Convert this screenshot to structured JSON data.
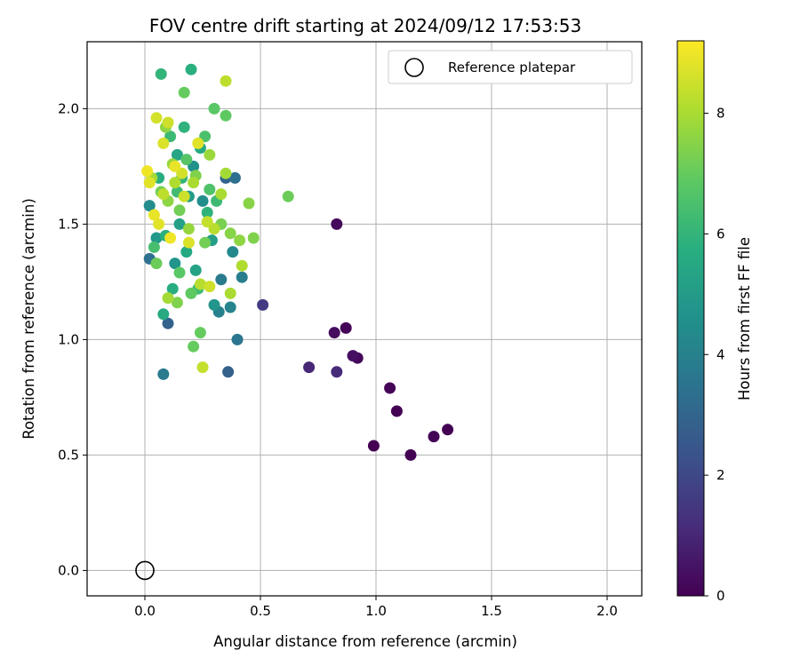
{
  "chart_data": {
    "type": "scatter",
    "title": "FOV centre drift starting at 2024/09/12 17:53:53",
    "xlabel": "Angular distance from reference (arcmin)",
    "ylabel": "Rotation from reference (arcmin)",
    "xlim": [
      -0.25,
      2.15
    ],
    "ylim": [
      -0.11,
      2.29
    ],
    "xticks": [
      0.0,
      0.5,
      1.0,
      1.5,
      2.0
    ],
    "xtick_labels": [
      "0.0",
      "0.5",
      "1.0",
      "1.5",
      "2.0"
    ],
    "yticks": [
      0.0,
      0.5,
      1.0,
      1.5,
      2.0
    ],
    "ytick_labels": [
      "0.0",
      "0.5",
      "1.0",
      "1.5",
      "2.0"
    ],
    "grid": true,
    "legend": {
      "placement": "top-right",
      "entries": [
        {
          "label": "Reference platepar",
          "marker": "open-circle"
        }
      ]
    },
    "reference_point": {
      "x": 0.0,
      "y": 0.0
    },
    "colorbar": {
      "label": "Hours from first FF file",
      "colormap": "viridis",
      "range": [
        0,
        9.2
      ],
      "ticks": [
        0,
        2,
        4,
        6,
        8
      ],
      "tick_labels": [
        "0",
        "2",
        "4",
        "6",
        "8"
      ]
    },
    "series": [
      {
        "color_by": "Hours from first FF file",
        "points": [
          [
            0.83,
            1.5,
            0.2
          ],
          [
            0.51,
            1.15,
            1.6
          ],
          [
            0.71,
            0.88,
            1.0
          ],
          [
            0.82,
            1.03,
            0.3
          ],
          [
            0.87,
            1.05,
            0.1
          ],
          [
            0.83,
            0.86,
            1.1
          ],
          [
            0.9,
            0.93,
            0.4
          ],
          [
            0.92,
            0.92,
            0.2
          ],
          [
            1.06,
            0.79,
            0.1
          ],
          [
            1.09,
            0.69,
            0.0
          ],
          [
            0.99,
            0.54,
            0.0
          ],
          [
            1.15,
            0.5,
            0.0
          ],
          [
            1.25,
            0.58,
            0.1
          ],
          [
            1.31,
            0.61,
            0.0
          ],
          [
            0.36,
            0.86,
            2.8
          ],
          [
            0.1,
            1.07,
            2.9
          ],
          [
            0.08,
            0.85,
            3.8
          ],
          [
            0.4,
            1.0,
            3.6
          ],
          [
            0.39,
            1.7,
            3.3
          ],
          [
            0.35,
            1.7,
            2.9
          ],
          [
            0.02,
            1.35,
            3.4
          ],
          [
            0.32,
            1.12,
            4.0
          ],
          [
            0.37,
            1.14,
            4.1
          ],
          [
            0.42,
            1.27,
            3.9
          ],
          [
            0.33,
            1.26,
            3.8
          ],
          [
            0.02,
            1.58,
            4.4
          ],
          [
            0.25,
            1.6,
            4.5
          ],
          [
            0.38,
            1.38,
            4.3
          ],
          [
            0.3,
            1.15,
            4.8
          ],
          [
            0.08,
            1.11,
            5.6
          ],
          [
            0.07,
            2.15,
            6.0
          ],
          [
            0.2,
            2.17,
            5.8
          ],
          [
            0.14,
            1.8,
            5.4
          ],
          [
            0.19,
            1.62,
            5.0
          ],
          [
            0.15,
            1.5,
            5.2
          ],
          [
            0.18,
            1.38,
            5.5
          ],
          [
            0.12,
            1.22,
            5.7
          ],
          [
            0.22,
            1.3,
            5.3
          ],
          [
            0.09,
            1.45,
            5.8
          ],
          [
            0.27,
            1.55,
            5.9
          ],
          [
            0.16,
            1.7,
            6.0
          ],
          [
            0.06,
            1.7,
            5.7
          ],
          [
            0.11,
            1.88,
            6.2
          ],
          [
            0.24,
            1.83,
            5.6
          ],
          [
            0.17,
            1.92,
            5.9
          ],
          [
            0.05,
            1.44,
            4.9
          ],
          [
            0.29,
            1.43,
            5.1
          ],
          [
            0.13,
            1.33,
            4.7
          ],
          [
            0.21,
            1.75,
            4.6
          ],
          [
            0.04,
            1.4,
            6.4
          ],
          [
            0.28,
            1.65,
            6.6
          ],
          [
            0.23,
            1.22,
            6.3
          ],
          [
            0.26,
            1.88,
            6.5
          ],
          [
            0.31,
            1.6,
            6.2
          ],
          [
            0.18,
            1.78,
            6.7
          ],
          [
            0.2,
            1.2,
            6.9
          ],
          [
            0.14,
            1.64,
            6.3
          ],
          [
            0.3,
            2.0,
            6.8
          ],
          [
            0.35,
            1.97,
            6.9
          ],
          [
            0.21,
            0.97,
            7.0
          ],
          [
            0.24,
            1.03,
            7.0
          ],
          [
            0.17,
            2.07,
            7.0
          ],
          [
            0.62,
            1.62,
            7.1
          ],
          [
            0.47,
            1.44,
            7.4
          ],
          [
            0.45,
            1.59,
            7.5
          ],
          [
            0.41,
            1.43,
            7.6
          ],
          [
            0.37,
            1.46,
            7.5
          ],
          [
            0.26,
            1.42,
            7.2
          ],
          [
            0.33,
            1.5,
            7.3
          ],
          [
            0.15,
            1.56,
            7.2
          ],
          [
            0.1,
            1.6,
            7.6
          ],
          [
            0.19,
            1.48,
            7.7
          ],
          [
            0.07,
            1.64,
            7.2
          ],
          [
            0.22,
            1.71,
            7.4
          ],
          [
            0.12,
            1.76,
            7.7
          ],
          [
            0.28,
            1.8,
            7.8
          ],
          [
            0.09,
            1.92,
            7.6
          ],
          [
            0.24,
            1.24,
            8.2
          ],
          [
            0.25,
            0.88,
            8.4
          ],
          [
            0.35,
            2.12,
            8.3
          ],
          [
            0.37,
            1.2,
            8.0
          ],
          [
            0.42,
            1.32,
            8.1
          ],
          [
            0.05,
            1.96,
            8.6
          ],
          [
            0.02,
            1.68,
            8.8
          ],
          [
            0.01,
            1.73,
            9.0
          ],
          [
            0.04,
            1.54,
            8.9
          ],
          [
            0.1,
            1.94,
            8.5
          ],
          [
            0.08,
            1.85,
            8.7
          ],
          [
            0.13,
            1.75,
            8.9
          ],
          [
            0.16,
            1.72,
            8.6
          ],
          [
            0.06,
            1.5,
            8.8
          ],
          [
            0.11,
            1.44,
            9.0
          ],
          [
            0.19,
            1.42,
            8.7
          ],
          [
            0.23,
            1.85,
            8.8
          ],
          [
            0.27,
            1.51,
            8.4
          ],
          [
            0.3,
            1.48,
            8.2
          ],
          [
            0.08,
            1.63,
            8.3
          ],
          [
            0.17,
            1.62,
            8.5
          ],
          [
            0.13,
            1.68,
            8.1
          ],
          [
            0.03,
            1.7,
            7.9
          ],
          [
            0.21,
            1.68,
            8.0
          ],
          [
            0.35,
            1.72,
            7.9
          ],
          [
            0.33,
            1.63,
            8.0
          ],
          [
            0.28,
            1.23,
            8.5
          ],
          [
            0.1,
            1.18,
            7.9
          ],
          [
            0.14,
            1.16,
            7.4
          ],
          [
            0.05,
            1.33,
            7.1
          ],
          [
            0.15,
            1.29,
            6.8
          ]
        ]
      }
    ]
  }
}
